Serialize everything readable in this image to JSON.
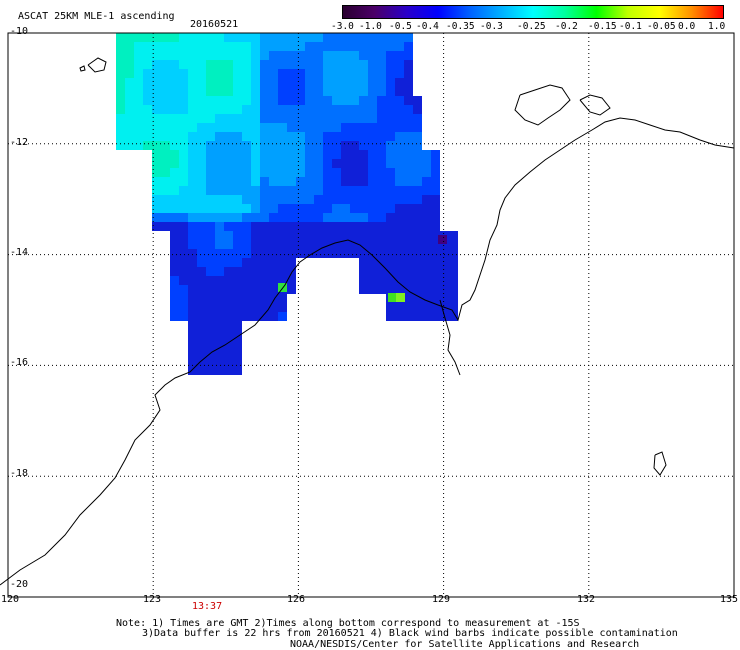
{
  "header": {
    "product_title": "ASCAT 25KM MLE-1 ascending",
    "date": "20160521"
  },
  "colorbar": {
    "labels": [
      "-3.0",
      "-1.0",
      "-0.5",
      "-0.4",
      "-0.35",
      "-0.3",
      "-0.25",
      "-0.2",
      "-0.15",
      "-0.1",
      "-0.05",
      "0.0",
      "1.0"
    ],
    "colors": [
      "#2a0030",
      "#4b0068",
      "#2a00c8",
      "#0000ff",
      "#0060ff",
      "#00b0ff",
      "#00ffff",
      "#00ffa0",
      "#00ff00",
      "#c0ff00",
      "#ffff00",
      "#ff9000",
      "#ff0000"
    ]
  },
  "axes": {
    "lat_labels": [
      "-10",
      "-12",
      "-14",
      "-16",
      "-18",
      "-20"
    ],
    "lon_labels": [
      "120",
      "123",
      "126",
      "129",
      "132",
      "135"
    ]
  },
  "time_label": {
    "text": "13:37",
    "color": "#cc0000"
  },
  "notes": {
    "line1": "Note: 1) Times are GMT 2)Times along bottom correspond to measurement at -15S",
    "line2": "3)Data buffer is 22 hrs from 20160521 4) Black wind barbs indicate possible contamination",
    "line3": "NOAA/NESDIS/Center for Satellite Applications and Research"
  },
  "legend_colors": {
    "coast": "#000000",
    "grid": "#000000"
  }
}
